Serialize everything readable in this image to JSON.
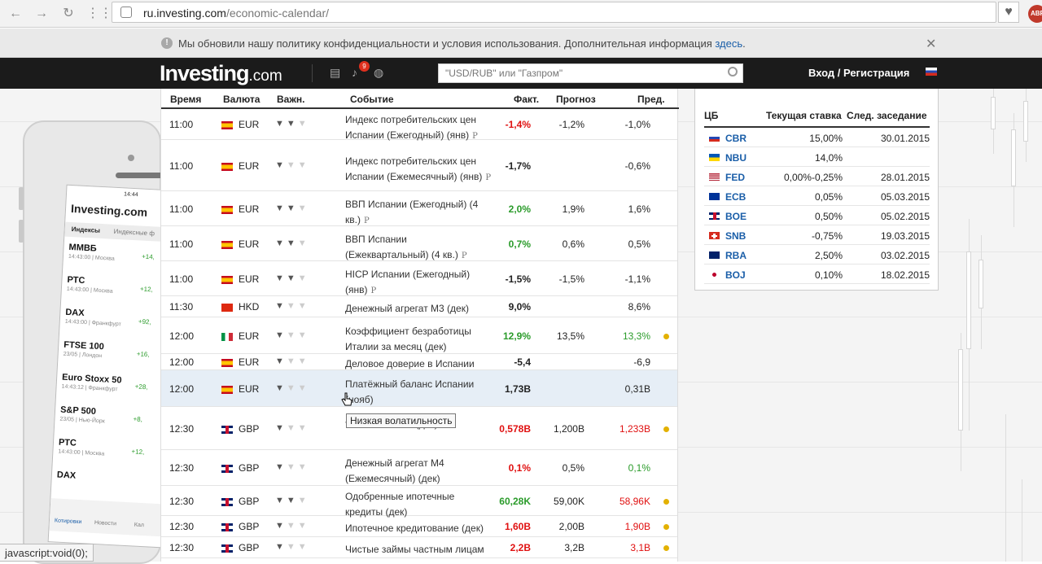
{
  "browser": {
    "url_host": "ru.investing.com",
    "url_path": "/economic-calendar/",
    "extension_badge": "ABP"
  },
  "notice": {
    "text": "Мы обновили нашу политику конфиденциальности и условия использования. Дополнительная информация",
    "link": "здесь",
    "period": "."
  },
  "header": {
    "logo_main": "Investing",
    "logo_suffix": ".com",
    "alerts_count": "9",
    "search_placeholder": "\"USD/RUB\" или \"Газпром\"",
    "login": "Вход / Регистрация"
  },
  "calendar": {
    "columns": [
      "Время",
      "Валюта",
      "Важн.",
      "Событие",
      "Факт.",
      "Прогноз",
      "Пред."
    ],
    "rows": [
      {
        "time": "11:00",
        "flag": "es",
        "currency": "EUR",
        "importance": 2,
        "event": "Индекс потребительских цен Испании (Ежегодный) (янв)",
        "prelim": "P",
        "actual": "-1,4%",
        "actual_color": "red",
        "forecast": "-1,2%",
        "previous": "-1,0%",
        "prev_color": "",
        "dot": false
      },
      {
        "time": "11:00",
        "flag": "es",
        "currency": "EUR",
        "importance": 1,
        "event": "Индекс потребительских цен Испании (Ежемесячный) (янв)",
        "prelim": "P",
        "actual": "-1,7%",
        "actual_color": "",
        "forecast": "",
        "previous": "-0,6%",
        "prev_color": "",
        "dot": false
      },
      {
        "time": "11:00",
        "flag": "es",
        "currency": "EUR",
        "importance": 2,
        "event": "ВВП Испании (Ежегодный) (4 кв.)",
        "prelim": "P",
        "actual": "2,0%",
        "actual_color": "green",
        "forecast": "1,9%",
        "previous": "1,6%",
        "prev_color": "",
        "dot": false
      },
      {
        "time": "11:00",
        "flag": "es",
        "currency": "EUR",
        "importance": 2,
        "event": "ВВП Испании (Ежеквартальный) (4 кв.)",
        "prelim": "P",
        "actual": "0,7%",
        "actual_color": "green",
        "forecast": "0,6%",
        "previous": "0,5%",
        "prev_color": "",
        "dot": false
      },
      {
        "time": "11:00",
        "flag": "es",
        "currency": "EUR",
        "importance": 2,
        "event": "HICP Испании (Ежегодный) (янв)",
        "prelim": "P",
        "actual": "-1,5%",
        "actual_color": "",
        "forecast": "-1,5%",
        "previous": "-1,1%",
        "prev_color": "",
        "dot": false
      },
      {
        "time": "11:30",
        "flag": "hk",
        "currency": "HKD",
        "importance": 1,
        "event": "Денежный агрегат М3 (дек)",
        "prelim": "",
        "actual": "9,0%",
        "actual_color": "",
        "forecast": "",
        "previous": "8,6%",
        "prev_color": "",
        "dot": false
      },
      {
        "time": "12:00",
        "flag": "it",
        "currency": "EUR",
        "importance": 1,
        "event": "Коэффициент безработицы Италии за месяц (дек)",
        "prelim": "",
        "actual": "12,9%",
        "actual_color": "green",
        "forecast": "13,5%",
        "previous": "13,3%",
        "prev_color": "green",
        "dot": true
      },
      {
        "time": "12:00",
        "flag": "es",
        "currency": "EUR",
        "importance": 1,
        "event": "Деловое доверие в Испании",
        "prelim": "",
        "actual": "-5,4",
        "actual_color": "",
        "forecast": "",
        "previous": "-6,9",
        "prev_color": "",
        "dot": false
      },
      {
        "time": "12:00",
        "flag": "es",
        "currency": "EUR",
        "importance": 1,
        "event": "Платёжный баланс Испании (нояб)",
        "prelim": "",
        "actual": "1,73B",
        "actual_color": "",
        "forecast": "",
        "previous": "0,31B",
        "prev_color": "",
        "dot": false,
        "highlight": true
      },
      {
        "time": "12:30",
        "flag": "gb",
        "currency": "GBP",
        "importance": 1,
        "event": "                                т банка Англии (дек)",
        "prelim": "",
        "actual": "0,578B",
        "actual_color": "red",
        "forecast": "1,200B",
        "previous": "1,233B",
        "prev_color": "red",
        "dot": true
      },
      {
        "time": "12:30",
        "flag": "gb",
        "currency": "GBP",
        "importance": 1,
        "event": "Денежный агрегат М4 (Ежемесячный) (дек)",
        "prelim": "",
        "actual": "0,1%",
        "actual_color": "red",
        "forecast": "0,5%",
        "previous": "0,1%",
        "prev_color": "green",
        "dot": false
      },
      {
        "time": "12:30",
        "flag": "gb",
        "currency": "GBP",
        "importance": 2,
        "event": "Одобренные ипотечные кредиты (дек)",
        "prelim": "",
        "actual": "60,28K",
        "actual_color": "green",
        "forecast": "59,00K",
        "previous": "58,96K",
        "prev_color": "red",
        "dot": true
      },
      {
        "time": "12:30",
        "flag": "gb",
        "currency": "GBP",
        "importance": 1,
        "event": "Ипотечное кредитование (дек)",
        "prelim": "",
        "actual": "1,60B",
        "actual_color": "red",
        "forecast": "2,00B",
        "previous": "1,90B",
        "prev_color": "red",
        "dot": true
      },
      {
        "time": "12:30",
        "flag": "gb",
        "currency": "GBP",
        "importance": 1,
        "event": "Чистые займы частным лицам",
        "prelim": "",
        "actual": "2,2B",
        "actual_color": "red",
        "forecast": "3,2B",
        "previous": "3,1B",
        "prev_color": "red",
        "dot": true
      }
    ],
    "tooltip": "Низкая волатильность"
  },
  "central_banks": {
    "columns": [
      "ЦБ",
      "Текущая ставка",
      "След. заседание"
    ],
    "rows": [
      {
        "flag": "ru",
        "bank": "CBR",
        "rate": "15,00%",
        "next": "30.01.2015"
      },
      {
        "flag": "ua",
        "bank": "NBU",
        "rate": "14,0%",
        "next": ""
      },
      {
        "flag": "us",
        "bank": "FED",
        "rate": "0,00%-0,25%",
        "next": "28.01.2015"
      },
      {
        "flag": "eu",
        "bank": "ECB",
        "rate": "0,05%",
        "next": "05.03.2015"
      },
      {
        "flag": "gb",
        "bank": "BOE",
        "rate": "0,50%",
        "next": "05.02.2015"
      },
      {
        "flag": "ch",
        "bank": "SNB",
        "rate": "-0,75%",
        "next": "19.03.2015"
      },
      {
        "flag": "au",
        "bank": "RBA",
        "rate": "2,50%",
        "next": "03.02.2015"
      },
      {
        "flag": "jp",
        "bank": "BOJ",
        "rate": "0,10%",
        "next": "18.02.2015"
      }
    ]
  },
  "phone_ad": {
    "time": "14:44",
    "logo": "Investing.com",
    "tabs": [
      "Индексы",
      "Индексные ф"
    ],
    "quotes": [
      {
        "name": "ММВБ",
        "sub": "14:43:00 | Москва",
        "val": "+14,"
      },
      {
        "name": "РТС",
        "sub": "14:43:00 | Москва",
        "val": "+12,"
      },
      {
        "name": "DAX",
        "sub": "14:43:00 | Франкфурт",
        "val": "+92,"
      },
      {
        "name": "FTSE 100",
        "sub": "23/05 | Лондон",
        "val": "+16,"
      },
      {
        "name": "Euro Stoxx 50",
        "sub": "14:43:12 | Франкфурт",
        "val": "+28,"
      },
      {
        "name": "S&P 500",
        "sub": "23/05 | Нью-Йорк",
        "val": "+8,"
      },
      {
        "name": "РТС",
        "sub": "14:43:00 | Москва",
        "val": "+12,"
      },
      {
        "name": "DAX",
        "sub": "",
        "val": ""
      }
    ],
    "bottom_tabs": [
      "Котировки",
      "Новости",
      "Кал"
    ]
  },
  "statusbar": "javascript:void(0);"
}
